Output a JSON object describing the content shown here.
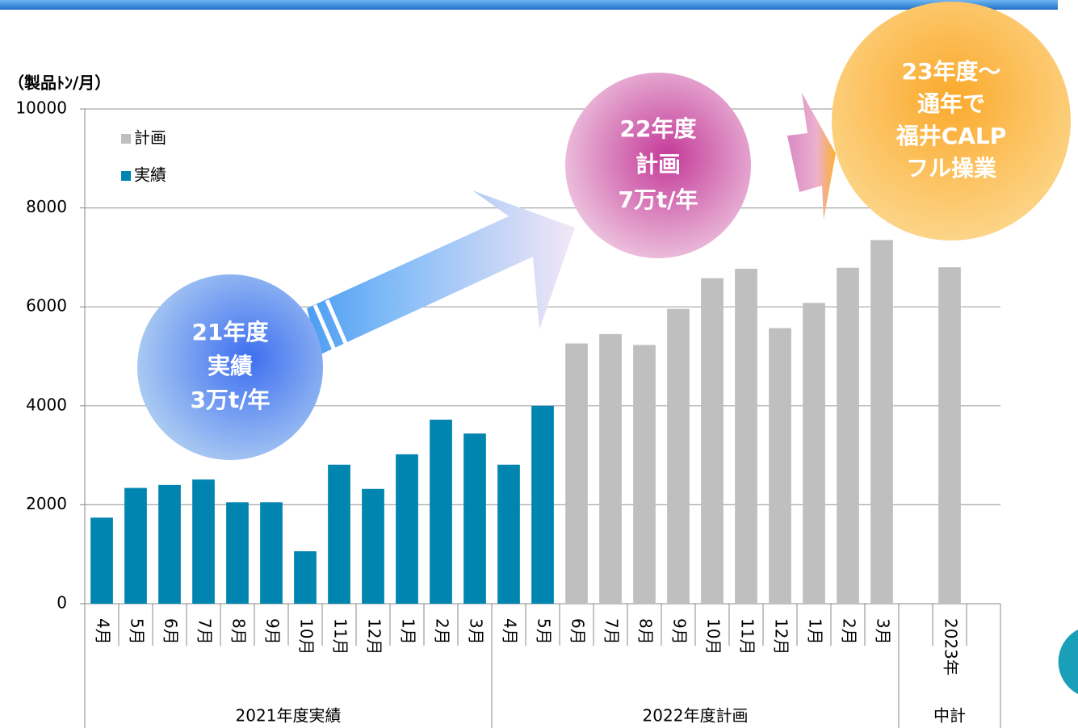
{
  "chart_data": {
    "type": "bar",
    "y_label": "（製品ﾄﾝ/月）",
    "ylim": [
      0,
      10000
    ],
    "yticks": [
      0,
      2000,
      4000,
      6000,
      8000,
      10000
    ],
    "grid": true,
    "groups": [
      {
        "label": "2021年度実績",
        "categories": [
          "4月",
          "5月",
          "6月",
          "7月",
          "8月",
          "9月",
          "10月",
          "11月",
          "12月",
          "1月",
          "2月",
          "3月"
        ]
      },
      {
        "label": "2022年度計画",
        "categories": [
          "4月",
          "5月",
          "6月",
          "7月",
          "8月",
          "9月",
          "10月",
          "11月",
          "12月",
          "1月",
          "2月",
          "3月"
        ]
      },
      {
        "label": "中計",
        "categories": [
          null,
          "2023年",
          null
        ]
      }
    ],
    "legend": "top-left",
    "series": [
      {
        "name": "計画",
        "color": "#bfbfbf",
        "values": [
          null,
          null,
          null,
          null,
          null,
          null,
          null,
          null,
          null,
          null,
          null,
          null,
          null,
          null,
          5260,
          5450,
          5230,
          5960,
          6580,
          6770,
          5570,
          6080,
          6790,
          7350,
          null,
          6800,
          null
        ]
      },
      {
        "name": "実績",
        "color": "#0085b0",
        "values": [
          1740,
          2340,
          2400,
          2510,
          2050,
          2050,
          1060,
          2810,
          2320,
          3020,
          3720,
          3440,
          2810,
          4000,
          null,
          null,
          null,
          null,
          null,
          null,
          null,
          null,
          null,
          null,
          null,
          null,
          null
        ]
      }
    ],
    "annotations": [
      {
        "lines": [
          "21年度",
          "実績",
          "3万t/年"
        ]
      },
      {
        "lines": [
          "22年度",
          "計画",
          "7万t/年"
        ]
      },
      {
        "lines": [
          "23年度～",
          "通年で",
          "福井CALP",
          "フル操業"
        ]
      }
    ]
  }
}
